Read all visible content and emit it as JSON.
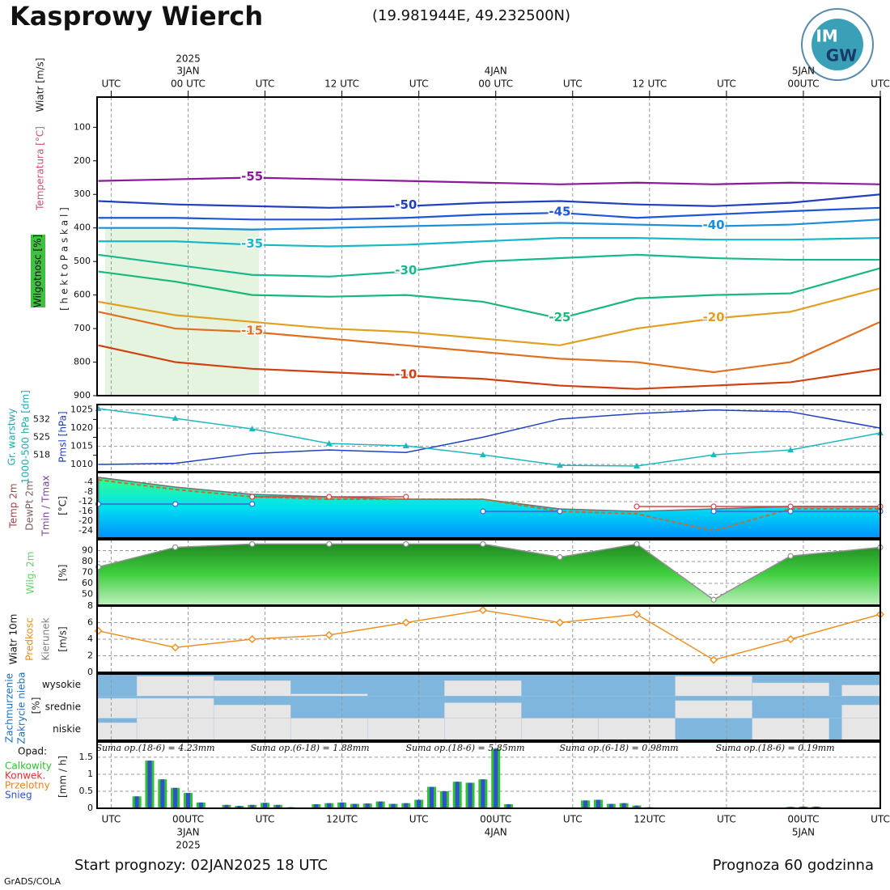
{
  "header": {
    "title": "Kasprowy Wierch",
    "coords": "(19.981944E, 49.232500N)",
    "logo": [
      "IM",
      "GW"
    ]
  },
  "footer": {
    "start": "Start prognozy: 02JAN2025 18 UTC",
    "length": "Prognoza 60 godzinna",
    "credit": "GrADS/COLA"
  },
  "time_axis": {
    "xlim": [
      -1.1,
      60
    ],
    "top_ticks": [
      {
        "value": 0,
        "label": "UTC"
      },
      {
        "value": 6,
        "label": "00 UTC"
      },
      {
        "value": 12,
        "label": "UTC"
      },
      {
        "value": 18,
        "label": "12 UTC"
      },
      {
        "value": 24,
        "label": "UTC"
      },
      {
        "value": 30,
        "label": "00 UTC"
      },
      {
        "value": 36,
        "label": "UTC"
      },
      {
        "value": 42,
        "label": "12 UTC"
      },
      {
        "value": 48,
        "label": "UTC"
      },
      {
        "value": 54,
        "label": "00UTC"
      },
      {
        "value": 60,
        "label": "UTC"
      }
    ],
    "top_dates": [
      {
        "value": 6,
        "label": "3JAN"
      },
      {
        "value": 30,
        "label": "4JAN"
      },
      {
        "value": 54,
        "label": "5JAN"
      }
    ],
    "top_year": {
      "value": 6,
      "label": "2025"
    },
    "bottom_ticks": [
      {
        "value": 0,
        "label": "UTC"
      },
      {
        "value": 6,
        "label": "00UTC"
      },
      {
        "value": 12,
        "label": "UTC"
      },
      {
        "value": 18,
        "label": "12UTC"
      },
      {
        "value": 24,
        "label": "UTC"
      },
      {
        "value": 30,
        "label": "00UTC"
      },
      {
        "value": 36,
        "label": "UTC"
      },
      {
        "value": 42,
        "label": "12UTC"
      },
      {
        "value": 48,
        "label": "UTC"
      },
      {
        "value": 54,
        "label": "00UTC"
      },
      {
        "value": 60,
        "label": "UTC"
      }
    ],
    "bottom_dates": [
      {
        "value": 6,
        "label": "3JAN"
      },
      {
        "value": 30,
        "label": "4JAN"
      },
      {
        "value": 54,
        "label": "5JAN"
      }
    ],
    "bottom_year": {
      "value": 6,
      "label": "2025"
    }
  },
  "chart_data": [
    {
      "type": "contour",
      "ylim": [
        900,
        10
      ],
      "yticks": [
        100,
        200,
        300,
        400,
        500,
        600,
        700,
        800,
        900
      ],
      "ylabels": [
        "Wiatr [m/s]",
        "Temperatura [°C]",
        "Wilgotnosc [%]",
        "[ h e k t o P a s k a l ]"
      ],
      "ylabel_colors": [
        "#222222",
        "#d05070",
        "#111111",
        "#222222"
      ],
      "x": [
        -1,
        5,
        11,
        17,
        23,
        29,
        35,
        41,
        47,
        53,
        60
      ],
      "series": [
        {
          "name": "-55",
          "color": "#8b1a9b",
          "values": [
            260,
            255,
            250,
            255,
            260,
            265,
            270,
            265,
            270,
            265,
            270
          ]
        },
        {
          "name": "-50",
          "color": "#2040c0",
          "values": [
            320,
            330,
            335,
            340,
            335,
            325,
            320,
            330,
            335,
            325,
            300
          ]
        },
        {
          "name": "-45",
          "color": "#1f55d8",
          "values": [
            370,
            370,
            375,
            375,
            370,
            360,
            355,
            370,
            360,
            350,
            340
          ]
        },
        {
          "name": "-40",
          "color": "#1a8fdc",
          "values": [
            400,
            400,
            405,
            400,
            395,
            390,
            385,
            390,
            395,
            390,
            375
          ]
        },
        {
          "name": "-35",
          "color": "#16b8c8",
          "values": [
            440,
            440,
            450,
            455,
            450,
            440,
            430,
            430,
            435,
            435,
            430
          ]
        },
        {
          "name": "-30",
          "color": "#18b890",
          "values": [
            480,
            510,
            540,
            545,
            530,
            500,
            490,
            480,
            490,
            495,
            495
          ]
        },
        {
          "name": "-25",
          "color": "#18b87a",
          "values": [
            530,
            560,
            600,
            605,
            600,
            620,
            670,
            610,
            600,
            595,
            520
          ]
        },
        {
          "name": "-20",
          "color": "#e0a020",
          "values": [
            620,
            660,
            680,
            700,
            710,
            730,
            750,
            700,
            670,
            650,
            580
          ]
        },
        {
          "name": "-15",
          "color": "#e07020",
          "values": [
            650,
            700,
            710,
            730,
            750,
            770,
            790,
            800,
            830,
            800,
            680
          ]
        },
        {
          "name": "-10",
          "color": "#d04010",
          "values": [
            750,
            800,
            820,
            830,
            840,
            850,
            870,
            880,
            870,
            860,
            820
          ]
        }
      ]
    },
    {
      "type": "line",
      "ylim": [
        1008,
        1026.5
      ],
      "yticks": [
        1010,
        1015,
        1020,
        1025
      ],
      "y2lim": [
        511.6,
        537.8
      ],
      "y2ticks": [
        518,
        525,
        532
      ],
      "ylabels": [
        "Gr. warstwy",
        "1000-500 hPa [dm]",
        "Pmsl [hPa]"
      ],
      "ylabel_colors": [
        "#20a8b0",
        "#20a8b0",
        "#2040c0"
      ],
      "x": [
        -1,
        5,
        11,
        17,
        23,
        29,
        35,
        41,
        47,
        53,
        60
      ],
      "series": [
        {
          "color": "#2040c0",
          "style": "line",
          "values": [
            1010,
            1010.3,
            1013,
            1014,
            1013.3,
            1017.5,
            1022.5,
            1024,
            1025,
            1024.5,
            1020
          ]
        },
        {
          "color": "#20b8c0",
          "style": "line",
          "marker": "triangle",
          "axis": "y2",
          "values": [
            536.2,
            532.4,
            528.3,
            522.6,
            521.7,
            518.2,
            514.1,
            513.8,
            518.2,
            520.1,
            526.7
          ]
        }
      ]
    },
    {
      "type": "line",
      "ylim": [
        -27,
        0
      ],
      "yticks": [
        -4,
        -8,
        -12,
        -16,
        -20,
        -24
      ],
      "ylabels": [
        "Temp 2m",
        "DewPt 2m",
        "Tmin / Tmax",
        "[°C]"
      ],
      "ylabel_colors": [
        "#a04040",
        "#806060",
        "#8040a0",
        "#222222"
      ],
      "x": [
        -1,
        5,
        11,
        17,
        23,
        29,
        35,
        41,
        47,
        53,
        60
      ],
      "series": [
        {
          "color": "#707070",
          "style": "area",
          "fill_colors": [
            "#30ff90",
            "#00e0f0",
            "#0090ff"
          ],
          "values": [
            -2,
            -6,
            -9,
            -10,
            -11,
            -11,
            -15,
            -16,
            -15,
            -14,
            -14
          ]
        },
        {
          "color": "#c07030",
          "style": "dashed",
          "values": [
            -3,
            -7,
            -10,
            -11,
            -11,
            -11,
            -16,
            -17,
            -24,
            -15,
            -15
          ]
        },
        {
          "color": "#e04040",
          "style": "line",
          "marker": "circle",
          "values": [
            null,
            null,
            -10,
            -10,
            -10,
            null,
            null,
            -14,
            -14,
            -14,
            -14
          ]
        },
        {
          "color": "#4060e0",
          "style": "line",
          "marker": "circle",
          "values": [
            -13,
            -13,
            -13,
            null,
            null,
            -16,
            -16,
            null,
            -16,
            -16,
            -16
          ]
        }
      ]
    },
    {
      "type": "line",
      "ylim": [
        40,
        100
      ],
      "yticks": [
        50,
        60,
        70,
        80,
        90
      ],
      "ylabels": [
        "Wilg. 2m",
        "[%]"
      ],
      "ylabel_colors": [
        "#60d060",
        "#222222"
      ],
      "x": [
        -1,
        5,
        11,
        17,
        23,
        29,
        35,
        41,
        47,
        53,
        60
      ],
      "series": [
        {
          "color": "#909090",
          "style": "area",
          "marker": "circle",
          "fill_colors": [
            "#208a20",
            "#40d040",
            "#c0f0c0"
          ],
          "values": [
            75,
            93,
            96,
            96,
            96,
            96,
            84,
            96,
            45,
            85,
            93
          ]
        }
      ]
    },
    {
      "type": "line",
      "ylim": [
        0,
        8
      ],
      "yticks": [
        0,
        2,
        4,
        6,
        8
      ],
      "ylabels": [
        "Wiatr 10m",
        "Predkosc",
        "Kierunek",
        "[m/s]"
      ],
      "ylabel_colors": [
        "#111111",
        "#e09020",
        "#808080",
        "#222222"
      ],
      "x": [
        -1,
        5,
        11,
        17,
        23,
        29,
        35,
        41,
        47,
        53,
        60
      ],
      "series": [
        {
          "color": "#f09020",
          "style": "line",
          "marker": "diamond",
          "values": [
            5,
            3,
            4,
            4.5,
            6,
            7.5,
            6,
            7,
            1.5,
            4,
            7
          ]
        }
      ]
    },
    {
      "type": "cloud",
      "categories": [
        "wysokie",
        "srednie",
        "niskie"
      ],
      "ylabels": [
        "Zachmurzenie",
        "Zakrycie nieba",
        "[%]"
      ],
      "ylabel_colors": [
        "#2070c0",
        "#2070c0",
        "#222222"
      ],
      "x": [
        -1,
        5,
        11,
        17,
        23,
        29,
        35,
        41,
        47,
        53,
        60
      ],
      "series": [
        {
          "values": [
            0,
            90,
            70,
            10,
            0,
            70,
            0,
            0,
            90,
            60,
            50
          ]
        },
        {
          "values": [
            90,
            90,
            60,
            0,
            0,
            70,
            0,
            0,
            80,
            0,
            60
          ]
        },
        {
          "values": [
            80,
            100,
            100,
            100,
            100,
            100,
            100,
            100,
            0,
            100,
            100
          ]
        }
      ]
    },
    {
      "type": "bar",
      "ylim": [
        0,
        1.95
      ],
      "yticks": [
        0,
        0.5,
        1,
        1.5
      ],
      "ylabels": [
        "[mm / h]"
      ],
      "ylabel_colors": [
        "#222222"
      ],
      "legend_title": "Opad:",
      "annotations": [
        "Suma op.(18-6) = 4.23mm",
        "Suma op.(6-18) = 1.88mm",
        "Suma op.(18-6) = 5.85mm",
        "Suma op.(6-18) = 0.98mm",
        "Suma op.(18-6) = 0.19mm"
      ],
      "x": [
        0,
        1,
        2,
        3,
        4,
        5,
        6,
        7,
        8,
        9,
        10,
        11,
        12,
        13,
        14,
        15,
        16,
        17,
        18,
        19,
        20,
        21,
        22,
        23,
        24,
        25,
        26,
        27,
        28,
        29,
        30,
        31,
        32,
        33,
        34,
        35,
        36,
        37,
        38,
        39,
        40,
        41,
        42,
        43,
        44,
        45,
        46,
        47,
        48,
        49,
        50,
        51,
        52,
        53,
        54,
        55,
        56,
        57,
        58,
        59,
        60
      ],
      "series": [
        {
          "name": "Calkowity",
          "color": "#30c030",
          "values": [
            0,
            0.02,
            0.35,
            1.4,
            0.85,
            0.6,
            0.45,
            0.17,
            0,
            0.1,
            0.07,
            0.1,
            0.16,
            0.1,
            0.03,
            0,
            0.12,
            0.15,
            0.17,
            0.13,
            0.14,
            0.2,
            0.13,
            0.15,
            0.25,
            0.63,
            0.5,
            0.78,
            0.75,
            0.85,
            1.75,
            0.12,
            0.02,
            0,
            0,
            0,
            0,
            0.23,
            0.25,
            0.13,
            0.15,
            0.08,
            0.03,
            0.02,
            0,
            0,
            0,
            0,
            0,
            0,
            0,
            0,
            0,
            0.04,
            0.05,
            0.05,
            0.02,
            0,
            0,
            0,
            0
          ]
        },
        {
          "name": "Konwek.",
          "color": "#e03030",
          "values": [
            0,
            0,
            0,
            0,
            0,
            0,
            0,
            0,
            0,
            0,
            0,
            0,
            0,
            0,
            0,
            0,
            0,
            0,
            0,
            0,
            0,
            0,
            0,
            0,
            0,
            0,
            0,
            0,
            0,
            0,
            0,
            0,
            0,
            0,
            0,
            0,
            0,
            0,
            0,
            0,
            0,
            0,
            0,
            0,
            0,
            0,
            0,
            0,
            0,
            0,
            0,
            0,
            0,
            0,
            0,
            0,
            0,
            0,
            0,
            0,
            0
          ]
        },
        {
          "name": "Przelotny",
          "color": "#f08020",
          "values": [
            0,
            0,
            0,
            0,
            0,
            0,
            0,
            0,
            0,
            0,
            0,
            0,
            0,
            0,
            0,
            0,
            0,
            0,
            0,
            0,
            0,
            0,
            0,
            0,
            0,
            0,
            0,
            0,
            0,
            0,
            0,
            0,
            0,
            0,
            0,
            0,
            0,
            0,
            0,
            0,
            0,
            0,
            0,
            0,
            0,
            0,
            0,
            0,
            0,
            0,
            0,
            0,
            0,
            0,
            0,
            0,
            0,
            0,
            0,
            0,
            0
          ]
        },
        {
          "name": "Snieg",
          "color": "#3050d0",
          "values": [
            0,
            0.02,
            0.35,
            1.4,
            0.85,
            0.6,
            0.45,
            0.17,
            0,
            0.1,
            0.07,
            0.1,
            0.16,
            0.1,
            0.03,
            0,
            0.12,
            0.15,
            0.17,
            0.13,
            0.14,
            0.2,
            0.13,
            0.15,
            0.25,
            0.63,
            0.5,
            0.78,
            0.75,
            0.85,
            1.75,
            0.12,
            0.02,
            0,
            0,
            0,
            0,
            0.23,
            0.25,
            0.13,
            0.15,
            0.08,
            0.03,
            0.02,
            0,
            0,
            0,
            0,
            0,
            0,
            0,
            0,
            0,
            0.04,
            0.05,
            0.05,
            0.02,
            0,
            0,
            0,
            0
          ]
        }
      ]
    }
  ]
}
